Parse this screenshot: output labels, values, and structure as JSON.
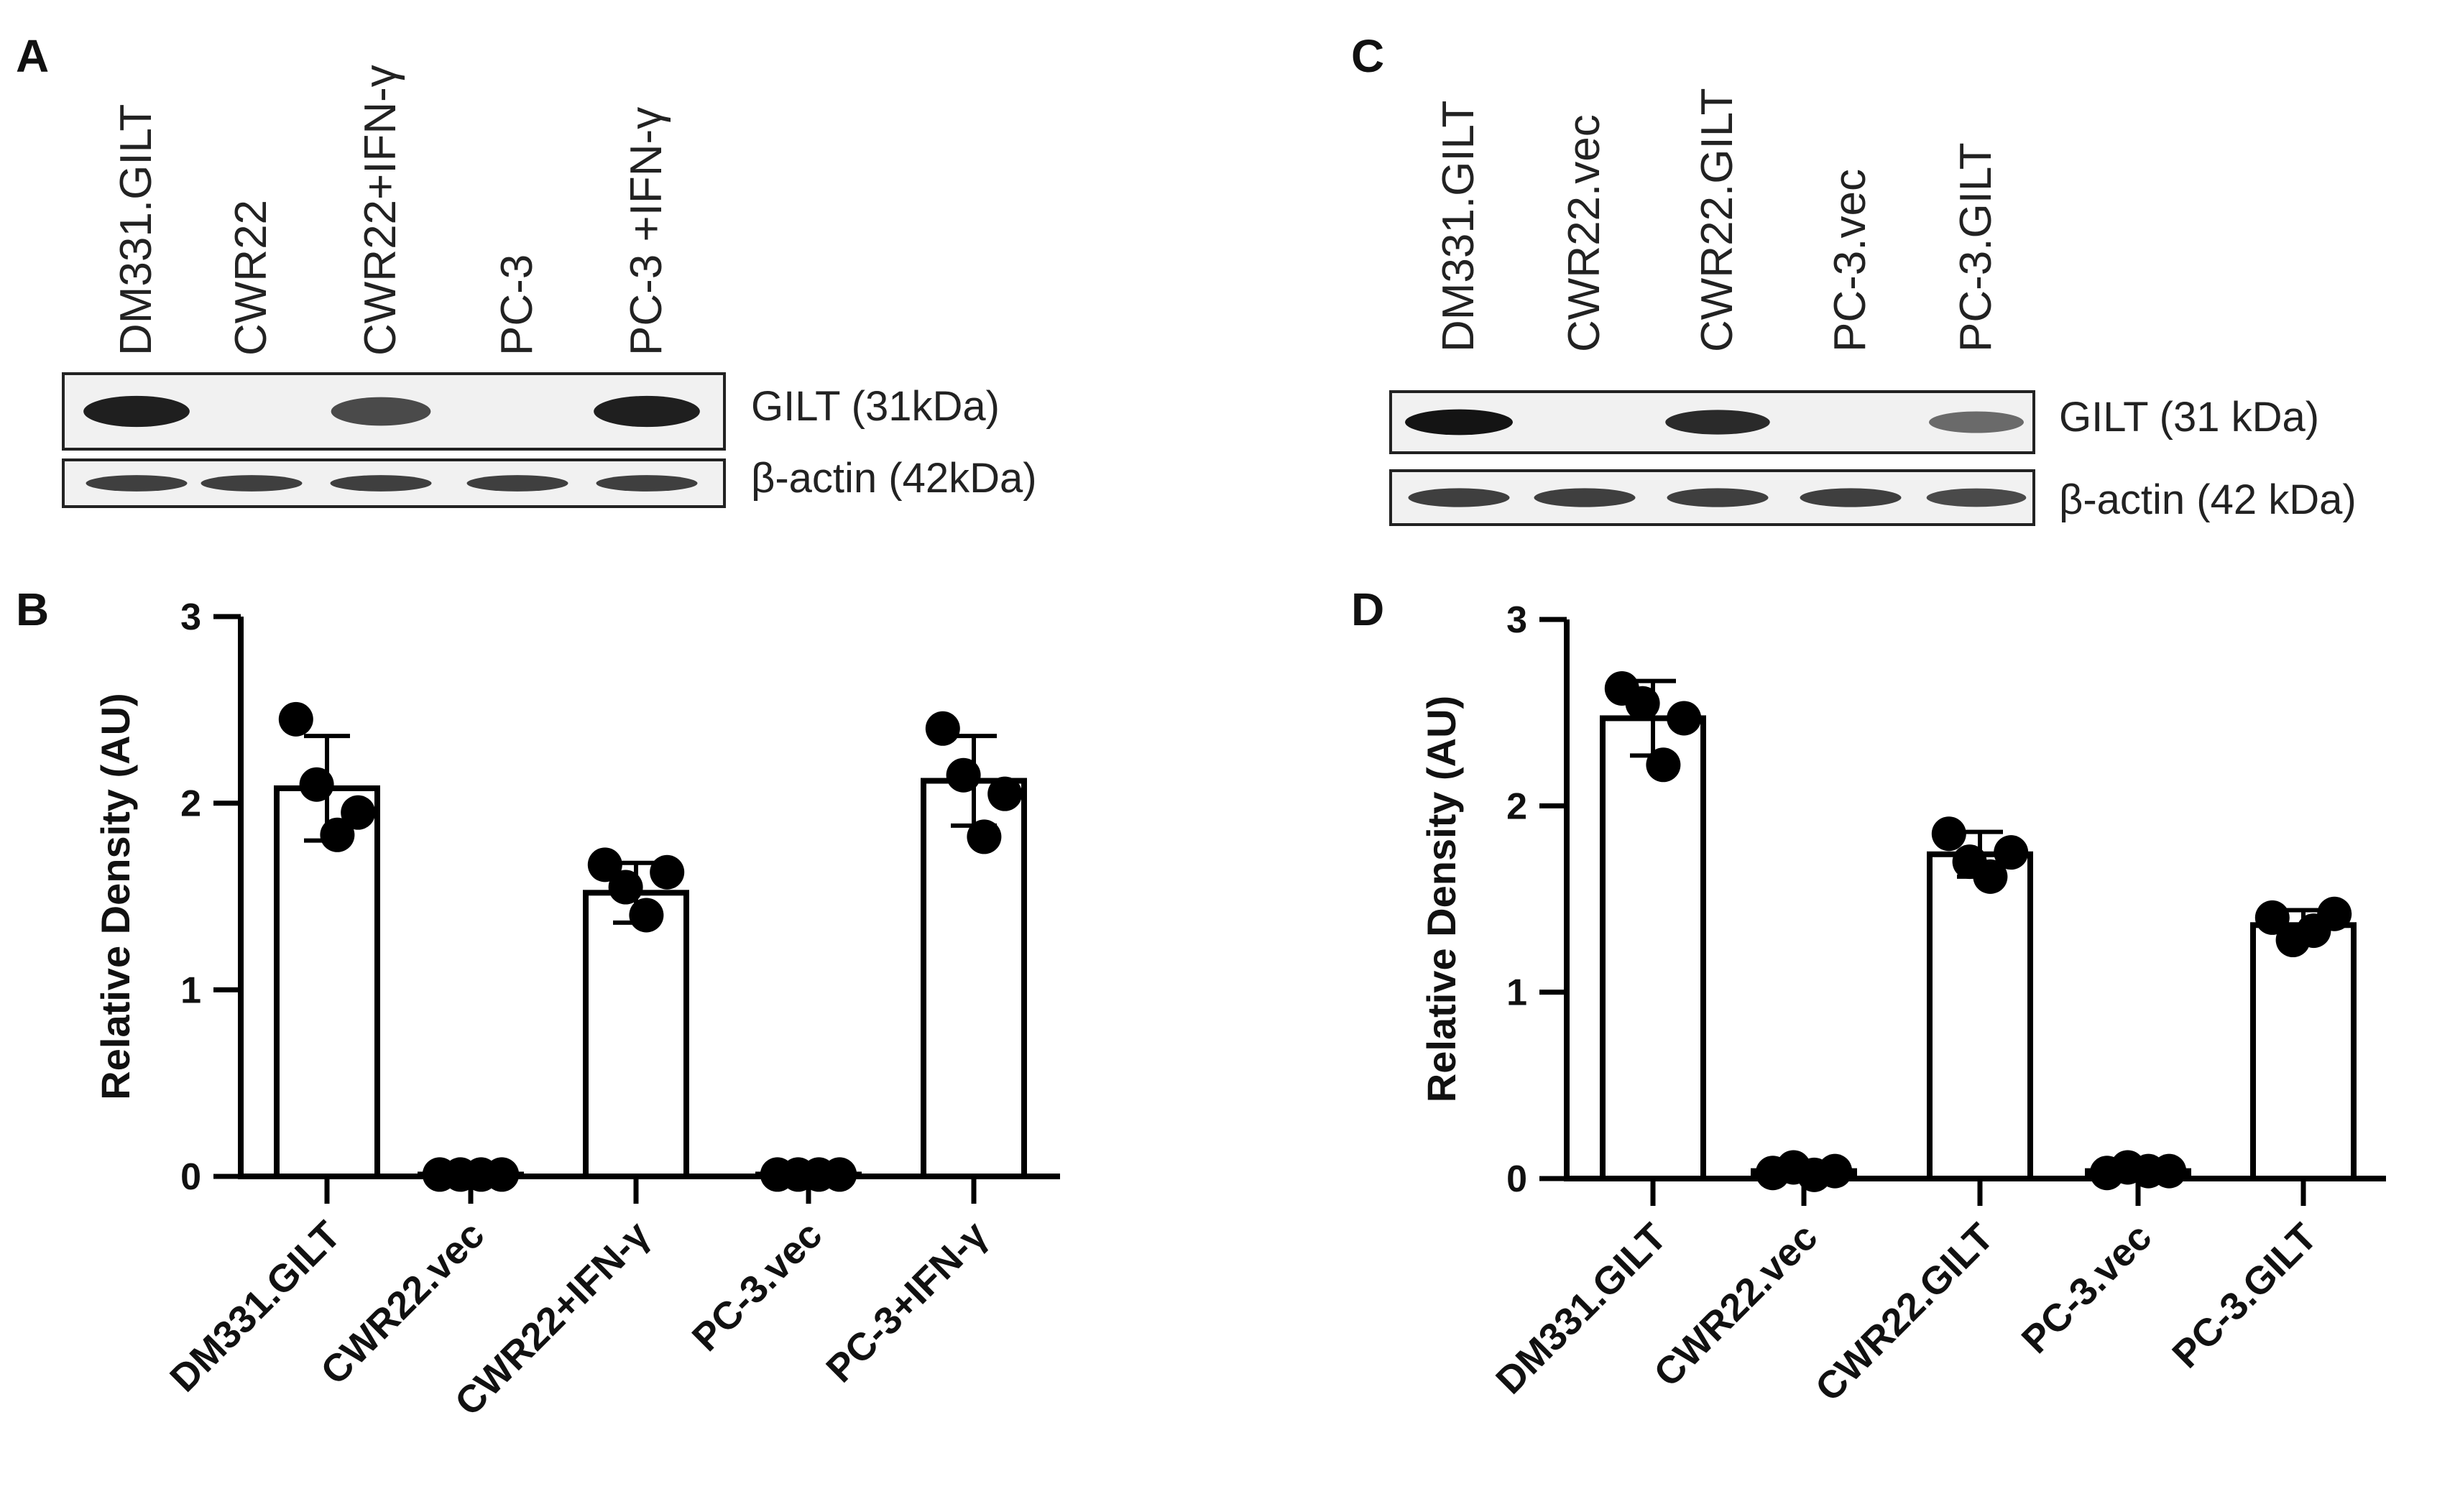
{
  "panels": {
    "A": {
      "letter": "A",
      "lanes": [
        "DM331.GILT",
        "CWR22",
        "CWR22+IFN-γ",
        "PC-3",
        "PC-3 +IFN-γ"
      ],
      "bands": [
        {
          "label": "GILT (31kDa)",
          "intensity": [
            0.95,
            0.0,
            0.75,
            0.0,
            0.95
          ]
        },
        {
          "label": "β-actin (42kDa)",
          "intensity": [
            0.8,
            0.8,
            0.8,
            0.8,
            0.8
          ]
        }
      ]
    },
    "C": {
      "letter": "C",
      "lanes": [
        "DM331.GILT",
        "CWR22.vec",
        "CWR22.GILT",
        "PC-3.vec",
        "PC-3.GILT"
      ],
      "bands": [
        {
          "label": "GILT (31 kDa)",
          "intensity": [
            1.0,
            0.0,
            0.9,
            0.0,
            0.6
          ]
        },
        {
          "label": "β-actin (42 kDa)",
          "intensity": [
            0.8,
            0.8,
            0.8,
            0.8,
            0.75
          ]
        }
      ]
    },
    "B": {
      "letter": "B"
    },
    "D": {
      "letter": "D"
    }
  },
  "chart_data": [
    {
      "panel": "B",
      "type": "bar",
      "ylabel": "Relative Density (AU)",
      "xlabel": "",
      "ylim": [
        0,
        3
      ],
      "yticks": [
        "0",
        "1",
        "2",
        "3"
      ],
      "categories": [
        "DM331.GILT",
        "CWR22.vec",
        "CWR22+IFN-γ",
        "PC-3.vec",
        "PC-3+IFN-γ"
      ],
      "values": [
        2.08,
        0.01,
        1.52,
        0.01,
        2.12
      ],
      "error": [
        0.28,
        0.0,
        0.16,
        0.0,
        0.24
      ],
      "points": [
        [
          2.45,
          2.1,
          1.83,
          1.95
        ],
        [
          0.01,
          0.01,
          0.01,
          0.01
        ],
        [
          1.67,
          1.55,
          1.4,
          1.63
        ],
        [
          0.01,
          0.01,
          0.01,
          0.01
        ],
        [
          2.4,
          2.15,
          1.82,
          2.05
        ]
      ]
    },
    {
      "panel": "D",
      "type": "bar",
      "ylabel": "Relative Density (AU)",
      "xlabel": "",
      "ylim": [
        0,
        3
      ],
      "yticks": [
        "0",
        "1",
        "2",
        "3"
      ],
      "categories": [
        "DM331.GILT",
        "CWR22.vec",
        "CWR22.GILT",
        "PC-3.vec",
        "PC-3.GILT"
      ],
      "values": [
        2.47,
        0.04,
        1.74,
        0.04,
        1.36
      ],
      "error": [
        0.2,
        0.0,
        0.12,
        0.0,
        0.08
      ],
      "points": [
        [
          2.63,
          2.55,
          2.22,
          2.47
        ],
        [
          0.03,
          0.06,
          0.02,
          0.04
        ],
        [
          1.85,
          1.7,
          1.62,
          1.75
        ],
        [
          0.03,
          0.06,
          0.04,
          0.04
        ],
        [
          1.4,
          1.28,
          1.33,
          1.42
        ]
      ]
    }
  ]
}
